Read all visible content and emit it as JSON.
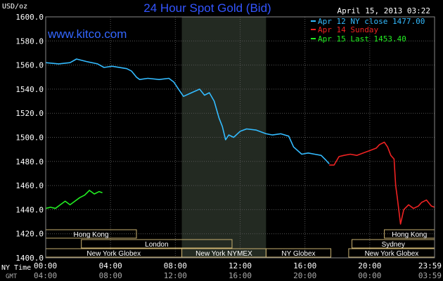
{
  "chart_data": {
    "type": "line",
    "title": "24 Hour Spot Gold (Bid)",
    "ylabel": "USD/oz",
    "website": "www.kitco.com",
    "date": "April 15, 2013 03:22",
    "ylim": [
      1400,
      1600
    ],
    "yticks": [
      "1600.0",
      "1580.0",
      "1560.0",
      "1540.0",
      "1520.0",
      "1500.0",
      "1480.0",
      "1460.0",
      "1440.0",
      "1420.0",
      "1400.0"
    ],
    "xlim": [
      0,
      24
    ],
    "grid": true,
    "legend_position": "top-right",
    "x_axis_ny": {
      "label": "NY Time",
      "ticks": [
        "00:00",
        "04:00",
        "08:00",
        "12:00",
        "16:00",
        "20:00",
        "23:59"
      ]
    },
    "x_axis_gmt": {
      "label": "GMT",
      "ticks": [
        "04:00",
        "08:00",
        "12:00",
        "16:00",
        "20:00",
        "00:00",
        "03:59"
      ]
    },
    "highlight_band": [
      8.4,
      13.6
    ],
    "series": [
      {
        "name": "Apr 12 NY close 1477.00",
        "color": "#33bbff",
        "x": [
          0,
          0.8,
          1.5,
          1.9,
          2.5,
          3.2,
          3.6,
          4.1,
          5.0,
          5.3,
          5.6,
          5.8,
          6.3,
          7.0,
          7.6,
          7.9,
          8.2,
          8.5,
          9.0,
          9.5,
          9.8,
          10.1,
          10.4,
          10.7,
          10.9,
          11.1,
          11.3,
          11.6,
          12.0,
          12.4,
          13.0,
          13.6,
          14.0,
          14.5,
          15.0,
          15.3,
          15.8,
          16.2,
          16.6,
          17.0,
          17.3,
          17.5
        ],
        "y": [
          1562,
          1561,
          1562,
          1565,
          1563,
          1561,
          1558,
          1559,
          1557,
          1555,
          1550,
          1548,
          1549,
          1548,
          1549,
          1546,
          1540,
          1534,
          1537,
          1540,
          1535,
          1537,
          1530,
          1516,
          1509,
          1498,
          1502,
          1500,
          1505,
          1507,
          1506,
          1503,
          1502,
          1503,
          1501,
          1492,
          1486,
          1487,
          1486,
          1485,
          1481,
          1478
        ]
      },
      {
        "name": "Apr 14 Sunday",
        "color": "#ee2222",
        "x": [
          17.5,
          17.8,
          18.1,
          18.4,
          18.8,
          19.2,
          19.6,
          20.0,
          20.4,
          20.6,
          20.9,
          21.1,
          21.3,
          21.5,
          21.6,
          21.7,
          21.9,
          22.1,
          22.4,
          22.7,
          23.0,
          23.2,
          23.5,
          23.8,
          24.0
        ],
        "y": [
          1477,
          1477,
          1484,
          1485,
          1486,
          1485,
          1487,
          1489,
          1491,
          1494,
          1496,
          1492,
          1485,
          1482,
          1460,
          1450,
          1428,
          1440,
          1444,
          1441,
          1443,
          1446,
          1448,
          1443,
          1442
        ]
      }
    ],
    "series_current": {
      "name": "Apr 15 Last 1453.40",
      "color": "#22ee22",
      "x": [
        0,
        0.3,
        0.6,
        0.9,
        1.2,
        1.5,
        1.8,
        2.1,
        2.4,
        2.7,
        3.0,
        3.3,
        3.5
      ],
      "y": [
        1441,
        1442,
        1441,
        1444,
        1447,
        1444,
        1447,
        1450,
        1452,
        1456,
        1453,
        1455,
        1454
      ]
    },
    "market_sessions": [
      {
        "name": "Hong Kong",
        "row": 0,
        "start": 0,
        "end": 5.6
      },
      {
        "name": "Hong Kong",
        "row": 0,
        "start": 20.9,
        "end": 24
      },
      {
        "name": "Sydney",
        "row": 1,
        "start": 18.9,
        "end": 24
      },
      {
        "name": "London",
        "row": 1,
        "start": 2.2,
        "end": 11.5
      },
      {
        "name": "New York Globex",
        "row": 2,
        "start": 0,
        "end": 8.4
      },
      {
        "name": "New York NYMEX",
        "row": 2,
        "start": 8.4,
        "end": 13.6
      },
      {
        "name": "NY Globex",
        "row": 2,
        "start": 13.6,
        "end": 17.6
      },
      {
        "name": "New York Globex",
        "row": 2,
        "start": 18.7,
        "end": 24
      }
    ]
  }
}
